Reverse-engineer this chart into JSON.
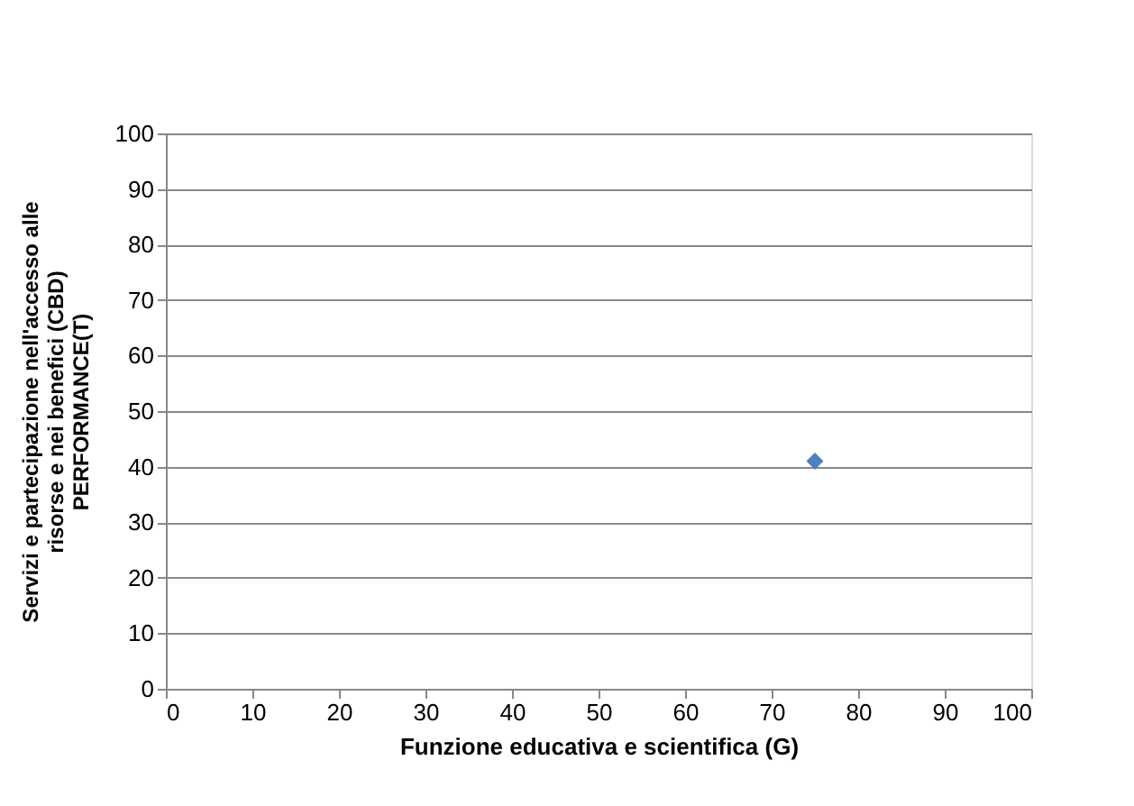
{
  "chart_data": {
    "type": "scatter",
    "xlabel": "Funzione educativa e scientifica (G)",
    "ylabel": "Servizi e partecipazione nell'accesso alle\nrisorse e nei benefici (CBD)\nPERFORMANCE(T)",
    "x": [
      75
    ],
    "series": [
      {
        "color": "#4f81bd",
        "values": [
          41
        ]
      }
    ],
    "xlim": [
      0,
      100
    ],
    "xticks": [
      0,
      10,
      20,
      30,
      40,
      50,
      60,
      70,
      80,
      90,
      100
    ],
    "ylim": [
      0,
      100
    ],
    "yticks": [
      0,
      10,
      20,
      30,
      40,
      50,
      60,
      70,
      80,
      90,
      100
    ],
    "grid": "y",
    "marker": "diamond",
    "legend": false
  }
}
